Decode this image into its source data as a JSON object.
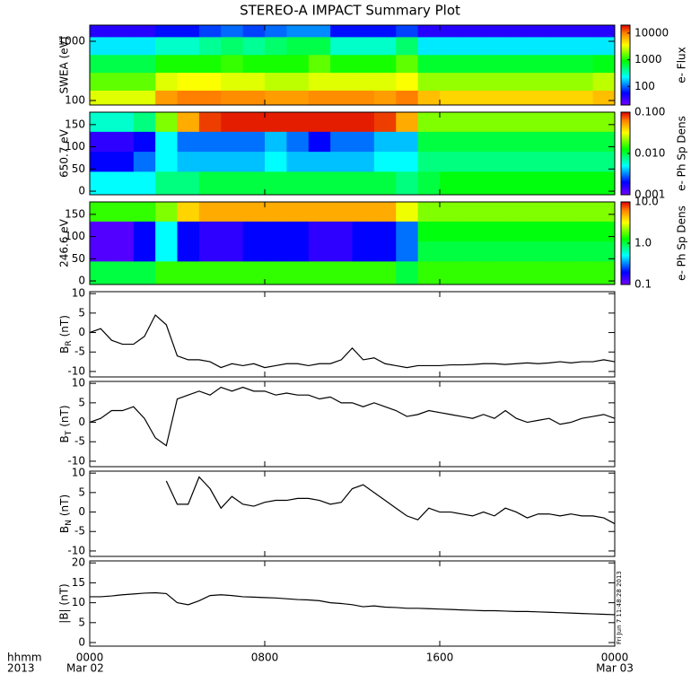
{
  "title": "STEREO-A IMPACT Summary Plot",
  "xaxis": {
    "xlim": [
      0,
      24
    ],
    "xticks": [
      {
        "value": 0,
        "label": "0000"
      },
      {
        "value": 8,
        "label": "0800"
      },
      {
        "value": 16,
        "label": "1600"
      },
      {
        "value": 24,
        "label": "0000"
      }
    ],
    "xdates": [
      "Mar 02",
      "Mar 03"
    ],
    "label": "hhmm",
    "year": "2013"
  },
  "timestamp": "Fri Jun  7 11:48:28 2013",
  "chart_data": [
    {
      "type": "heatmap",
      "ylabel": "SWEA (eV)",
      "ylog": true,
      "ylim": [
        84,
        1875
      ],
      "yticks": [
        100,
        1000
      ],
      "colormap": "rainbow",
      "x_edges": [
        0,
        1,
        2,
        3,
        4,
        5,
        6,
        7,
        8,
        9,
        10,
        11,
        12,
        13,
        14,
        15,
        16,
        17,
        18,
        19,
        20,
        21,
        22,
        23,
        24
      ],
      "y_edges": [
        84,
        150,
        300,
        600,
        1200,
        1875
      ],
      "values": [
        [
          3000,
          3000,
          3000,
          8000,
          10000,
          10000,
          9000,
          9000,
          8000,
          8000,
          9000,
          9000,
          9000,
          8000,
          10000,
          6000,
          5000,
          5000,
          5000,
          5000,
          5000,
          5000,
          5000,
          6000
        ],
        [
          1500,
          1500,
          1500,
          3000,
          3500,
          3500,
          3000,
          3000,
          2500,
          2500,
          3000,
          3000,
          3000,
          3000,
          3500,
          2000,
          2000,
          2000,
          2000,
          2000,
          2000,
          2000,
          2000,
          2500
        ],
        [
          600,
          600,
          600,
          1000,
          1000,
          1000,
          1200,
          1000,
          1000,
          1000,
          1500,
          1000,
          1000,
          1000,
          1500,
          700,
          700,
          700,
          700,
          700,
          700,
          700,
          700,
          800
        ],
        [
          200,
          200,
          200,
          300,
          300,
          400,
          500,
          400,
          500,
          600,
          600,
          300,
          300,
          300,
          500,
          200,
          200,
          200,
          200,
          200,
          200,
          200,
          200,
          200
        ],
        [
          40,
          40,
          40,
          60,
          60,
          80,
          100,
          80,
          100,
          120,
          120,
          60,
          60,
          60,
          80,
          40,
          40,
          40,
          40,
          40,
          40,
          40,
          40,
          40
        ]
      ],
      "colorbar": {
        "label": "e- Flux",
        "log": true,
        "lim": [
          20,
          20000
        ],
        "ticks": [
          100,
          1000,
          10000
        ]
      }
    },
    {
      "type": "heatmap",
      "ylabel": "650.7 eV",
      "ylog": false,
      "ylim": [
        -8,
        178
      ],
      "yticks": [
        0,
        50,
        100,
        150
      ],
      "colormap": "rainbow",
      "x_edges": [
        0,
        1,
        2,
        3,
        4,
        5,
        6,
        7,
        8,
        9,
        10,
        11,
        12,
        13,
        14,
        15,
        16,
        17,
        18,
        19,
        20,
        21,
        22,
        23,
        24
      ],
      "y_edges": [
        -8,
        45,
        90,
        135,
        178
      ],
      "values": [
        [
          0.005,
          0.005,
          0.005,
          0.008,
          0.008,
          0.01,
          0.01,
          0.01,
          0.01,
          0.01,
          0.01,
          0.01,
          0.01,
          0.01,
          0.008,
          0.01,
          0.012,
          0.012,
          0.012,
          0.012,
          0.012,
          0.012,
          0.012,
          0.012
        ],
        [
          0.002,
          0.002,
          0.003,
          0.005,
          0.004,
          0.004,
          0.004,
          0.004,
          0.005,
          0.004,
          0.004,
          0.004,
          0.004,
          0.005,
          0.005,
          0.008,
          0.008,
          0.008,
          0.008,
          0.008,
          0.008,
          0.008,
          0.008,
          0.008
        ],
        [
          0.0015,
          0.0015,
          0.002,
          0.005,
          0.003,
          0.003,
          0.003,
          0.003,
          0.004,
          0.003,
          0.002,
          0.003,
          0.003,
          0.004,
          0.004,
          0.01,
          0.01,
          0.01,
          0.01,
          0.01,
          0.01,
          0.01,
          0.01,
          0.01
        ],
        [
          0.006,
          0.006,
          0.008,
          0.02,
          0.05,
          0.08,
          0.09,
          0.09,
          0.09,
          0.09,
          0.09,
          0.09,
          0.09,
          0.08,
          0.05,
          0.02,
          0.02,
          0.02,
          0.02,
          0.02,
          0.02,
          0.02,
          0.02,
          0.02
        ]
      ],
      "colorbar": {
        "label": "e- Ph Sp Dens",
        "log": true,
        "lim": [
          0.001,
          0.1
        ],
        "ticks": [
          0.001,
          {
            "value": 0.01,
            "label": "0.010"
          },
          {
            "value": 0.1,
            "label": "0.100"
          }
        ]
      }
    },
    {
      "type": "heatmap",
      "ylabel": "246.6 eV",
      "ylog": false,
      "ylim": [
        -8,
        178
      ],
      "yticks": [
        0,
        50,
        100,
        150
      ],
      "colormap": "rainbow",
      "x_edges": [
        0,
        1,
        2,
        3,
        4,
        5,
        6,
        7,
        8,
        9,
        10,
        11,
        12,
        13,
        14,
        15,
        16,
        17,
        18,
        19,
        20,
        21,
        22,
        23,
        24
      ],
      "y_edges": [
        -8,
        45,
        90,
        135,
        178
      ],
      "values": [
        [
          1,
          1,
          1,
          1.5,
          1.5,
          1.5,
          1.5,
          1.5,
          1.5,
          1.5,
          1.5,
          1.5,
          1.5,
          1.5,
          1,
          1.5,
          1.5,
          1.5,
          1.5,
          1.5,
          1.5,
          1.5,
          1.5,
          1.5
        ],
        [
          0.12,
          0.12,
          0.2,
          0.5,
          0.2,
          0.15,
          0.15,
          0.2,
          0.2,
          0.2,
          0.15,
          0.15,
          0.2,
          0.2,
          0.3,
          1,
          1,
          1,
          1,
          1,
          1,
          1,
          1,
          1
        ],
        [
          0.12,
          0.12,
          0.2,
          0.5,
          0.2,
          0.15,
          0.15,
          0.2,
          0.2,
          0.2,
          0.15,
          0.15,
          0.2,
          0.2,
          0.3,
          1.2,
          1.2,
          1.2,
          1.2,
          1.2,
          1.2,
          1.2,
          1.2,
          1.2
        ],
        [
          1.5,
          1.5,
          1.5,
          2,
          4,
          5,
          5,
          5,
          5,
          5,
          5,
          5,
          5,
          5,
          3,
          2,
          2,
          2,
          2,
          2,
          2,
          2,
          2,
          2
        ]
      ],
      "colorbar": {
        "label": "e- Ph Sp Dens",
        "log": true,
        "lim": [
          0.1,
          10
        ],
        "ticks": [
          0.1,
          {
            "value": 1,
            "label": "1.0"
          },
          {
            "value": 10,
            "label": "10.0"
          }
        ]
      }
    },
    {
      "type": "line",
      "ylabel": "B",
      "ylabel_sub": "R",
      "ylabel_unit": "(nT)",
      "ylim": [
        -11.4,
        10.5
      ],
      "yticks": [
        -10,
        -5,
        0,
        5,
        10
      ],
      "color": "#000000",
      "x": [
        0,
        0.5,
        1,
        1.5,
        2,
        2.5,
        3,
        3.5,
        4,
        4.5,
        5,
        5.5,
        6,
        6.5,
        7,
        7.5,
        8,
        8.5,
        9,
        9.5,
        10,
        10.5,
        11,
        11.5,
        12,
        12.5,
        13,
        13.5,
        14,
        14.5,
        15,
        15.5,
        16,
        16.5,
        17,
        17.5,
        18,
        18.5,
        19,
        19.5,
        20,
        20.5,
        21,
        21.5,
        22,
        22.5,
        23,
        23.5,
        24
      ],
      "values": [
        0,
        1,
        -2,
        -3,
        -3,
        -1,
        4.5,
        2,
        -6,
        -7,
        -7,
        -7.5,
        -9,
        -8,
        -8.5,
        -8,
        -9,
        -8.5,
        -8,
        -8,
        -8.5,
        -8,
        -8,
        -7,
        -4,
        -7,
        -6.5,
        -8,
        -8.5,
        -9,
        -8.5,
        -8.5,
        -8.5,
        -8.3,
        -8.3,
        -8.2,
        -8,
        -8,
        -8.2,
        -8,
        -7.8,
        -8,
        -7.8,
        -7.5,
        -7.8,
        -7.5,
        -7.5,
        -7,
        -7.5
      ]
    },
    {
      "type": "line",
      "ylabel": "B",
      "ylabel_sub": "T",
      "ylabel_unit": "(nT)",
      "ylim": [
        -11.4,
        10.5
      ],
      "yticks": [
        -10,
        -5,
        0,
        5,
        10
      ],
      "color": "#000000",
      "x": [
        0,
        0.5,
        1,
        1.5,
        2,
        2.5,
        3,
        3.5,
        4,
        4.5,
        5,
        5.5,
        6,
        6.5,
        7,
        7.5,
        8,
        8.5,
        9,
        9.5,
        10,
        10.5,
        11,
        11.5,
        12,
        12.5,
        13,
        13.5,
        14,
        14.5,
        15,
        15.5,
        16,
        16.5,
        17,
        17.5,
        18,
        18.5,
        19,
        19.5,
        20,
        20.5,
        21,
        21.5,
        22,
        22.5,
        23,
        23.5,
        24
      ],
      "values": [
        0,
        1,
        3,
        3,
        4,
        1,
        -4,
        -6,
        6,
        7,
        8,
        7,
        9,
        8,
        9,
        8,
        8,
        7,
        7.5,
        7,
        7,
        6,
        6.5,
        5,
        5,
        4,
        5,
        4,
        3,
        1.5,
        2,
        3,
        2.5,
        2,
        1.5,
        1,
        2,
        1,
        3,
        1,
        0,
        0.5,
        1,
        -0.5,
        0,
        1,
        1.5,
        2,
        1
      ]
    },
    {
      "type": "line",
      "ylabel": "B",
      "ylabel_sub": "N",
      "ylabel_unit": "(nT)",
      "ylim": [
        -11.4,
        10.5
      ],
      "yticks": [
        -10,
        -5,
        0,
        5,
        10
      ],
      "color": "#000000",
      "x": [
        0,
        0.5,
        1,
        1.5,
        2,
        2.5,
        3,
        3.5,
        4,
        4.5,
        5,
        5.5,
        6,
        6.5,
        7,
        7.5,
        8,
        8.5,
        9,
        9.5,
        10,
        10.5,
        11,
        11.5,
        12,
        12.5,
        13,
        13.5,
        14,
        14.5,
        15,
        15.5,
        16,
        16.5,
        17,
        17.5,
        18,
        18.5,
        19,
        19.5,
        20,
        20.5,
        21,
        21.5,
        22,
        22.5,
        23,
        23.5,
        24
      ],
      "values": [
        null,
        null,
        null,
        null,
        null,
        null,
        null,
        8,
        2,
        2,
        9,
        6,
        1,
        4,
        2,
        1.5,
        2.5,
        3,
        3,
        3.5,
        3.5,
        3,
        2,
        2.5,
        6,
        7,
        5,
        3,
        1,
        -1,
        -2,
        1,
        0,
        0,
        -0.5,
        -1,
        0,
        -1,
        1,
        0,
        -1.5,
        -0.5,
        -0.5,
        -1,
        -0.5,
        -1,
        -1,
        -1.5,
        -3
      ]
    },
    {
      "type": "line",
      "ylabel": "|B| (nT)",
      "ylim": [
        -0.9,
        20.5
      ],
      "yticks": [
        0,
        5,
        10,
        15,
        20
      ],
      "color": "#000000",
      "x": [
        0,
        0.5,
        1,
        1.5,
        2,
        2.5,
        3,
        3.5,
        4,
        4.5,
        5,
        5.5,
        6,
        6.5,
        7,
        7.5,
        8,
        8.5,
        9,
        9.5,
        10,
        10.5,
        11,
        11.5,
        12,
        12.5,
        13,
        13.5,
        14,
        14.5,
        15,
        15.5,
        16,
        16.5,
        17,
        17.5,
        18,
        18.5,
        19,
        19.5,
        20,
        20.5,
        21,
        21.5,
        22,
        22.5,
        23,
        23.5,
        24
      ],
      "values": [
        11.5,
        11.5,
        11.7,
        12,
        12.2,
        12.4,
        12.5,
        12.3,
        10,
        9.5,
        10.5,
        11.8,
        12,
        11.8,
        11.5,
        11.4,
        11.3,
        11.2,
        11,
        10.8,
        10.7,
        10.5,
        10,
        9.8,
        9.5,
        9,
        9.2,
        8.9,
        8.8,
        8.6,
        8.6,
        8.5,
        8.4,
        8.3,
        8.2,
        8.1,
        8,
        8,
        7.9,
        7.8,
        7.8,
        7.7,
        7.6,
        7.5,
        7.4,
        7.3,
        7.2,
        7.1,
        7
      ]
    }
  ]
}
